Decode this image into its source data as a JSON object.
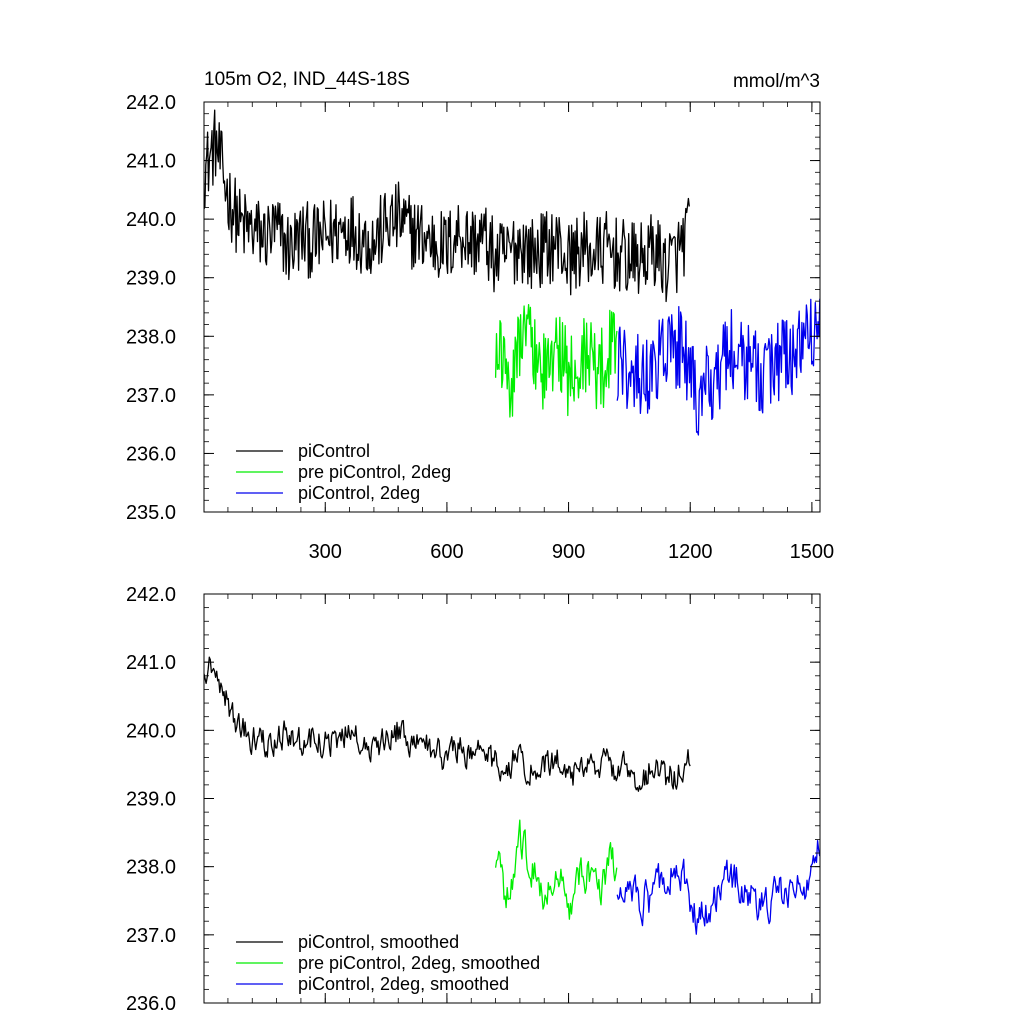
{
  "title_left": "105m O2, IND_44S-18S",
  "title_right": "mmol/m^3",
  "colors": {
    "black": "#000000",
    "green": "#00ee00",
    "blue": "#0000ee"
  },
  "chart_data": [
    {
      "type": "line",
      "title": "105m O2, IND_44S-18S",
      "units": "mmol/m^3",
      "xlim": [
        1,
        1520
      ],
      "ylim": [
        235.0,
        242.0
      ],
      "xticks": [
        300,
        600,
        900,
        1200,
        1500
      ],
      "xtick_labels": [
        "300",
        "600",
        "900",
        "1200",
        "1500"
      ],
      "yticks": [
        235.0,
        236.0,
        237.0,
        238.0,
        239.0,
        240.0,
        241.0,
        242.0
      ],
      "ytick_labels": [
        "235.0",
        "236.0",
        "237.0",
        "238.0",
        "239.0",
        "240.0",
        "241.0",
        "242.0"
      ],
      "legend_position": "bottom-left",
      "series": [
        {
          "name": "piControl",
          "color": "#000000",
          "x": [
            1,
            30,
            60,
            90,
            120,
            150,
            180,
            210,
            240,
            270,
            300,
            330,
            360,
            390,
            420,
            450,
            480,
            510,
            540,
            570,
            600,
            630,
            660,
            690,
            720,
            750,
            780,
            810,
            840,
            870,
            900,
            930,
            960,
            990,
            1020,
            1050,
            1080,
            1110,
            1140,
            1170,
            1200
          ],
          "y": [
            240.8,
            241.3,
            240.4,
            239.9,
            239.8,
            239.7,
            239.8,
            239.5,
            239.7,
            239.6,
            239.7,
            239.8,
            239.9,
            239.7,
            239.6,
            239.9,
            240.0,
            239.8,
            239.7,
            239.6,
            239.5,
            239.8,
            239.6,
            239.7,
            239.3,
            239.4,
            239.6,
            239.4,
            239.5,
            239.6,
            239.3,
            239.5,
            239.4,
            239.5,
            239.4,
            239.3,
            239.3,
            239.5,
            239.2,
            239.4,
            239.9
          ],
          "amplitude": 0.65
        },
        {
          "name": "pre piControl, 2deg",
          "color": "#00ee00",
          "x": [
            720,
            740,
            760,
            780,
            800,
            820,
            840,
            860,
            880,
            900,
            920,
            940,
            960,
            980,
            1000,
            1020
          ],
          "y": [
            238.0,
            237.6,
            237.3,
            237.8,
            238.2,
            237.6,
            237.4,
            237.5,
            237.8,
            237.3,
            237.5,
            237.7,
            237.6,
            237.4,
            237.8,
            237.9
          ],
          "amplitude": 0.75
        },
        {
          "name": "piControl, 2deg",
          "color": "#0000ee",
          "x": [
            1020,
            1060,
            1100,
            1140,
            1180,
            1220,
            1260,
            1300,
            1340,
            1380,
            1420,
            1460,
            1500,
            1520
          ],
          "y": [
            237.6,
            237.4,
            237.3,
            237.7,
            237.8,
            236.9,
            237.3,
            237.8,
            237.6,
            237.4,
            237.6,
            237.7,
            237.9,
            238.3
          ],
          "amplitude": 0.75
        }
      ]
    },
    {
      "type": "line",
      "xlim": [
        1,
        1520
      ],
      "ylim": [
        236.0,
        242.0
      ],
      "xticks": [
        300,
        600,
        900,
        1200,
        1500
      ],
      "yticks": [
        236.0,
        237.0,
        238.0,
        239.0,
        240.0,
        241.0,
        242.0
      ],
      "ytick_labels": [
        "236.0",
        "237.0",
        "238.0",
        "239.0",
        "240.0",
        "241.0",
        "242.0"
      ],
      "legend_position": "bottom-left",
      "series": [
        {
          "name": "piControl, smoothed",
          "color": "#000000",
          "x": [
            1,
            30,
            60,
            90,
            120,
            150,
            180,
            210,
            240,
            270,
            300,
            330,
            360,
            390,
            420,
            450,
            480,
            510,
            540,
            570,
            600,
            630,
            660,
            690,
            720,
            750,
            780,
            810,
            840,
            870,
            900,
            930,
            960,
            990,
            1020,
            1050,
            1080,
            1110,
            1140,
            1170,
            1200
          ],
          "y": [
            241.0,
            240.9,
            240.4,
            240.0,
            239.9,
            239.8,
            239.9,
            240.0,
            239.8,
            239.9,
            239.8,
            239.9,
            240.0,
            239.8,
            239.7,
            239.9,
            240.0,
            239.8,
            239.8,
            239.7,
            239.6,
            239.8,
            239.6,
            239.8,
            239.5,
            239.5,
            239.6,
            239.4,
            239.5,
            239.6,
            239.3,
            239.5,
            239.4,
            239.5,
            239.4,
            239.4,
            239.3,
            239.5,
            239.3,
            239.4,
            239.7
          ],
          "amplitude": 0.35
        },
        {
          "name": "pre piControl, 2deg, smoothed",
          "color": "#00ee00",
          "x": [
            720,
            740,
            760,
            780,
            800,
            820,
            840,
            860,
            880,
            900,
            920,
            940,
            960,
            980,
            1000,
            1020
          ],
          "y": [
            238.2,
            237.6,
            237.6,
            238.4,
            238.2,
            237.8,
            237.6,
            237.8,
            238.0,
            237.4,
            237.7,
            237.9,
            237.8,
            237.6,
            238.0,
            238.0
          ],
          "amplitude": 0.45
        },
        {
          "name": "piControl, 2deg, smoothed",
          "color": "#0000ee",
          "x": [
            1020,
            1060,
            1100,
            1140,
            1180,
            1220,
            1260,
            1300,
            1340,
            1380,
            1420,
            1460,
            1500,
            1520
          ],
          "y": [
            237.8,
            237.5,
            237.5,
            237.9,
            237.9,
            237.2,
            237.5,
            237.9,
            237.7,
            237.4,
            237.6,
            237.7,
            237.9,
            238.4
          ],
          "amplitude": 0.45
        }
      ]
    }
  ]
}
